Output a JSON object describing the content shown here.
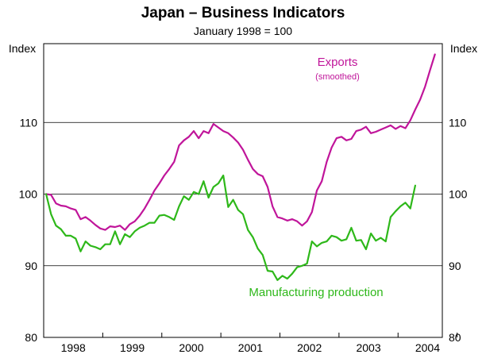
{
  "chart_data": {
    "type": "line",
    "title": "Japan – Business Indicators",
    "subtitle": "January 1998 = 100",
    "ylabel_left": "Index",
    "ylabel_right": "Index",
    "ylim": [
      80,
      121
    ],
    "yticks": [
      80,
      90,
      100,
      110
    ],
    "xlim": [
      1997.958,
      2004.708
    ],
    "xtick_labels": [
      "1998",
      "1999",
      "2000",
      "2001",
      "2002",
      "2003",
      "2004"
    ],
    "grid": true,
    "series": [
      {
        "name": "Exports",
        "annotation": "Exports",
        "annotation_sub": "(smoothed)",
        "color": "#c0159a",
        "x_start": 1998.0,
        "x_step": 0.08333,
        "values": [
          100,
          99.9,
          98.7,
          98.4,
          98.3,
          98.0,
          97.8,
          96.5,
          96.8,
          96.3,
          95.7,
          95.2,
          95.0,
          95.5,
          95.4,
          95.6,
          95.0,
          95.8,
          96.2,
          97.0,
          98.0,
          99.2,
          100.5,
          101.5,
          102.6,
          103.5,
          104.5,
          106.8,
          107.5,
          108.0,
          108.8,
          107.8,
          108.8,
          108.5,
          109.8,
          109.3,
          108.8,
          108.5,
          107.9,
          107.2,
          106.2,
          104.8,
          103.5,
          102.8,
          102.5,
          101.0,
          98.3,
          96.8,
          96.6,
          96.3,
          96.5,
          96.2,
          95.6,
          96.2,
          97.5,
          100.5,
          101.8,
          104.5,
          106.5,
          107.8,
          108.0,
          107.5,
          107.7,
          108.8,
          109.0,
          109.4,
          108.5,
          108.7,
          109.0,
          109.3,
          109.6,
          109.1,
          109.5,
          109.2,
          110.3,
          111.8,
          113.2,
          115.0,
          117.3,
          119.5
        ]
      },
      {
        "name": "Manufacturing production",
        "annotation": "Manufacturing production",
        "color": "#2eb81a",
        "x_start": 1998.0,
        "x_step": 0.08333,
        "values": [
          100,
          97.2,
          95.6,
          95.1,
          94.2,
          94.2,
          93.8,
          92.0,
          93.4,
          92.8,
          92.6,
          92.3,
          93.0,
          93.0,
          94.8,
          93.0,
          94.4,
          94.0,
          94.8,
          95.3,
          95.6,
          96.0,
          96.0,
          97.0,
          97.1,
          96.8,
          96.4,
          98.3,
          99.7,
          99.2,
          100.3,
          100.0,
          101.8,
          99.5,
          101.0,
          101.5,
          102.6,
          98.2,
          99.2,
          97.8,
          97.2,
          95.0,
          94.0,
          92.4,
          91.5,
          89.3,
          89.2,
          88.0,
          88.6,
          88.2,
          88.9,
          89.8,
          90.0,
          90.3,
          93.4,
          92.7,
          93.2,
          93.4,
          94.2,
          94.0,
          93.5,
          93.7,
          95.3,
          93.5,
          93.6,
          92.3,
          94.5,
          93.5,
          93.9,
          93.4,
          96.8,
          97.6,
          98.3,
          98.8,
          98.0,
          101.2
        ]
      }
    ]
  }
}
